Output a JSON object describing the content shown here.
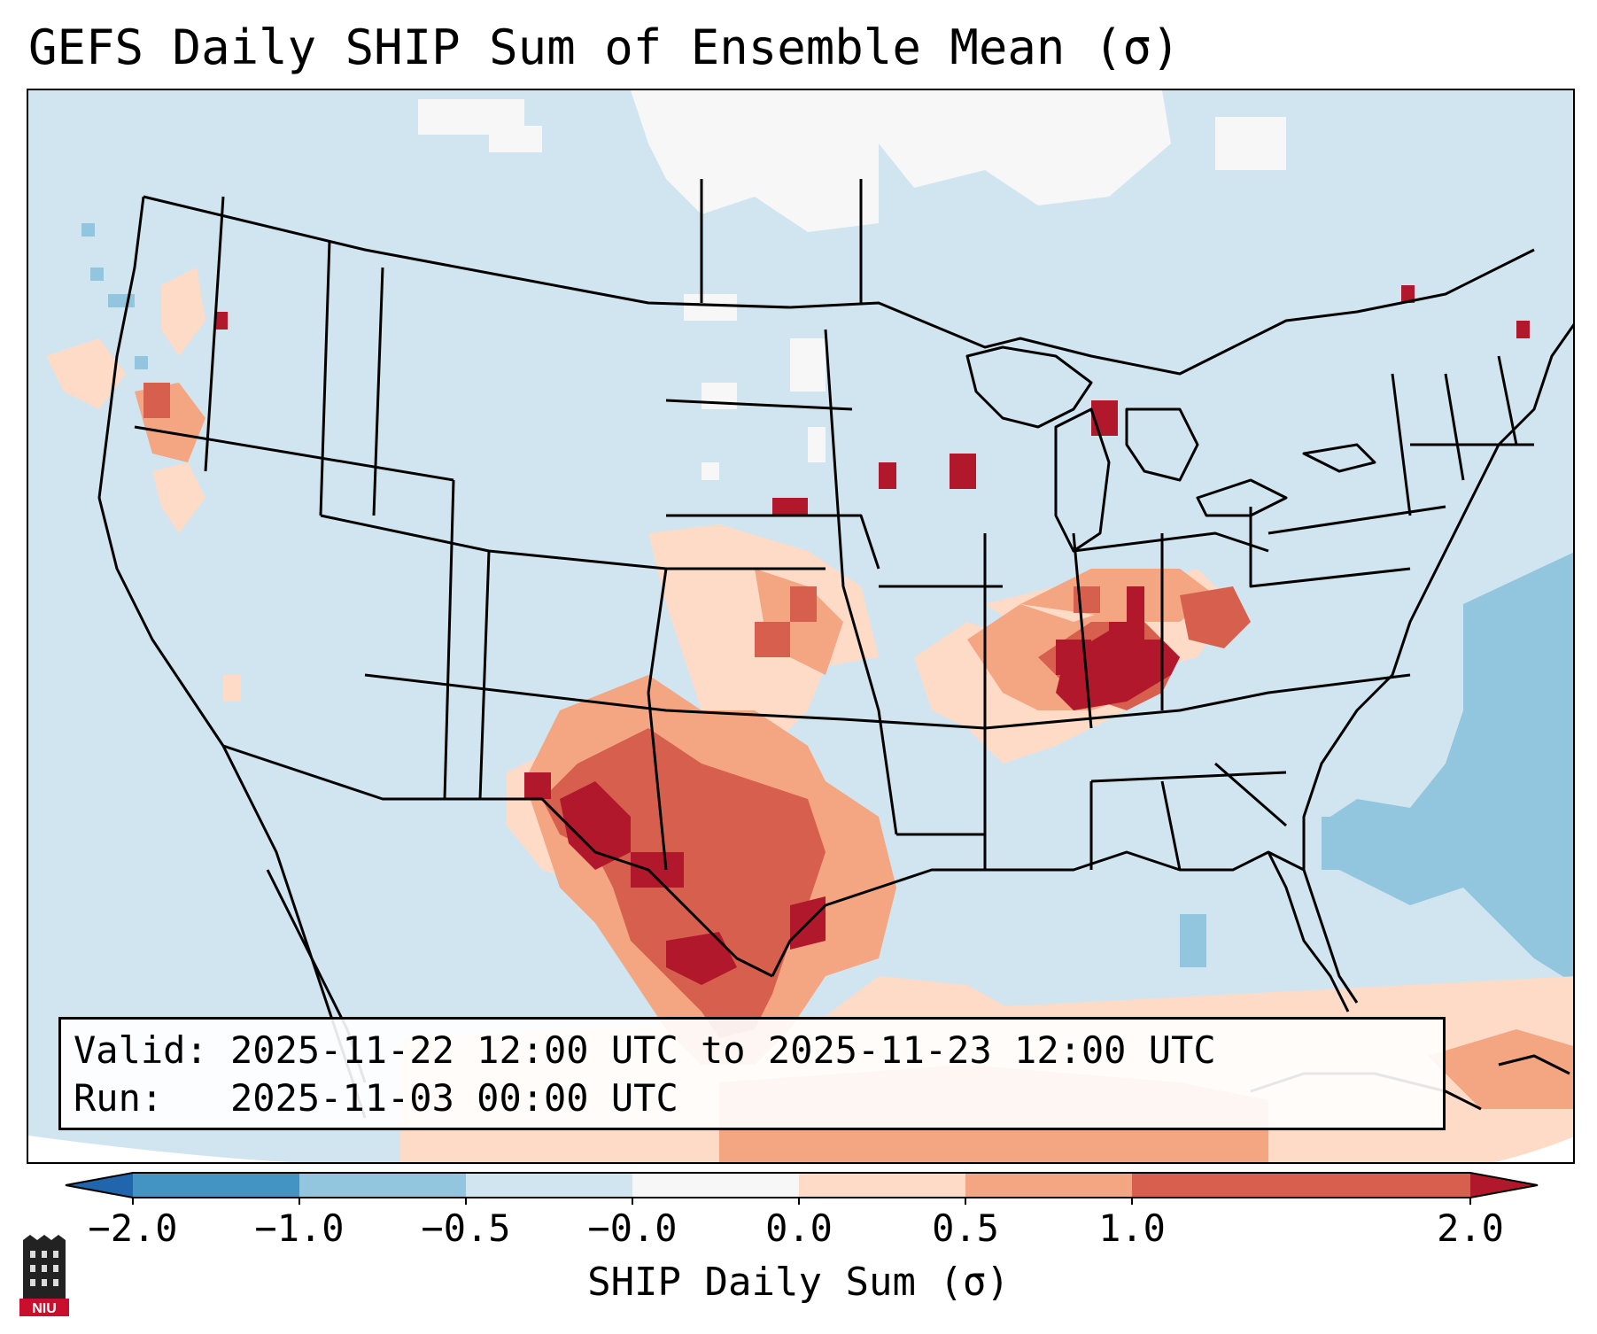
{
  "title": "GEFS Daily SHIP Sum of Ensemble Mean (σ)",
  "info": {
    "valid_label": "Valid:",
    "valid_value": "2025-11-22 12:00 UTC to 2025-11-23 12:00 UTC",
    "run_label": "Run:",
    "run_value": "2025-11-03 00:00 UTC"
  },
  "colorbar": {
    "label": "SHIP Daily Sum (σ)",
    "ticks": [
      "−2.0",
      "−1.0",
      "−0.5",
      "−0.0",
      "0.0",
      "0.5",
      "1.0",
      "2.0"
    ],
    "bins": [
      {
        "range": "<-2.0",
        "color": "#2166ac"
      },
      {
        "range": "-2.0 to -1.0",
        "color": "#4393c3"
      },
      {
        "range": "-1.0 to -0.5",
        "color": "#92c5de"
      },
      {
        "range": "-0.5 to -0.0",
        "color": "#d1e5f0"
      },
      {
        "range": "-0.0 to 0.0",
        "color": "#f7f7f7"
      },
      {
        "range": "0.0 to 0.5",
        "color": "#fddbc7"
      },
      {
        "range": "0.5 to 1.0",
        "color": "#f4a582"
      },
      {
        "range": "1.0 to 2.0",
        "color": "#d6604d"
      },
      {
        "range": ">2.0",
        "color": "#b2182b"
      }
    ]
  },
  "map": {
    "background_color": "#d1e5f0",
    "border_color": "#000000"
  },
  "logo": {
    "text": "NIU",
    "icon": "niu-tower-logo-icon"
  }
}
